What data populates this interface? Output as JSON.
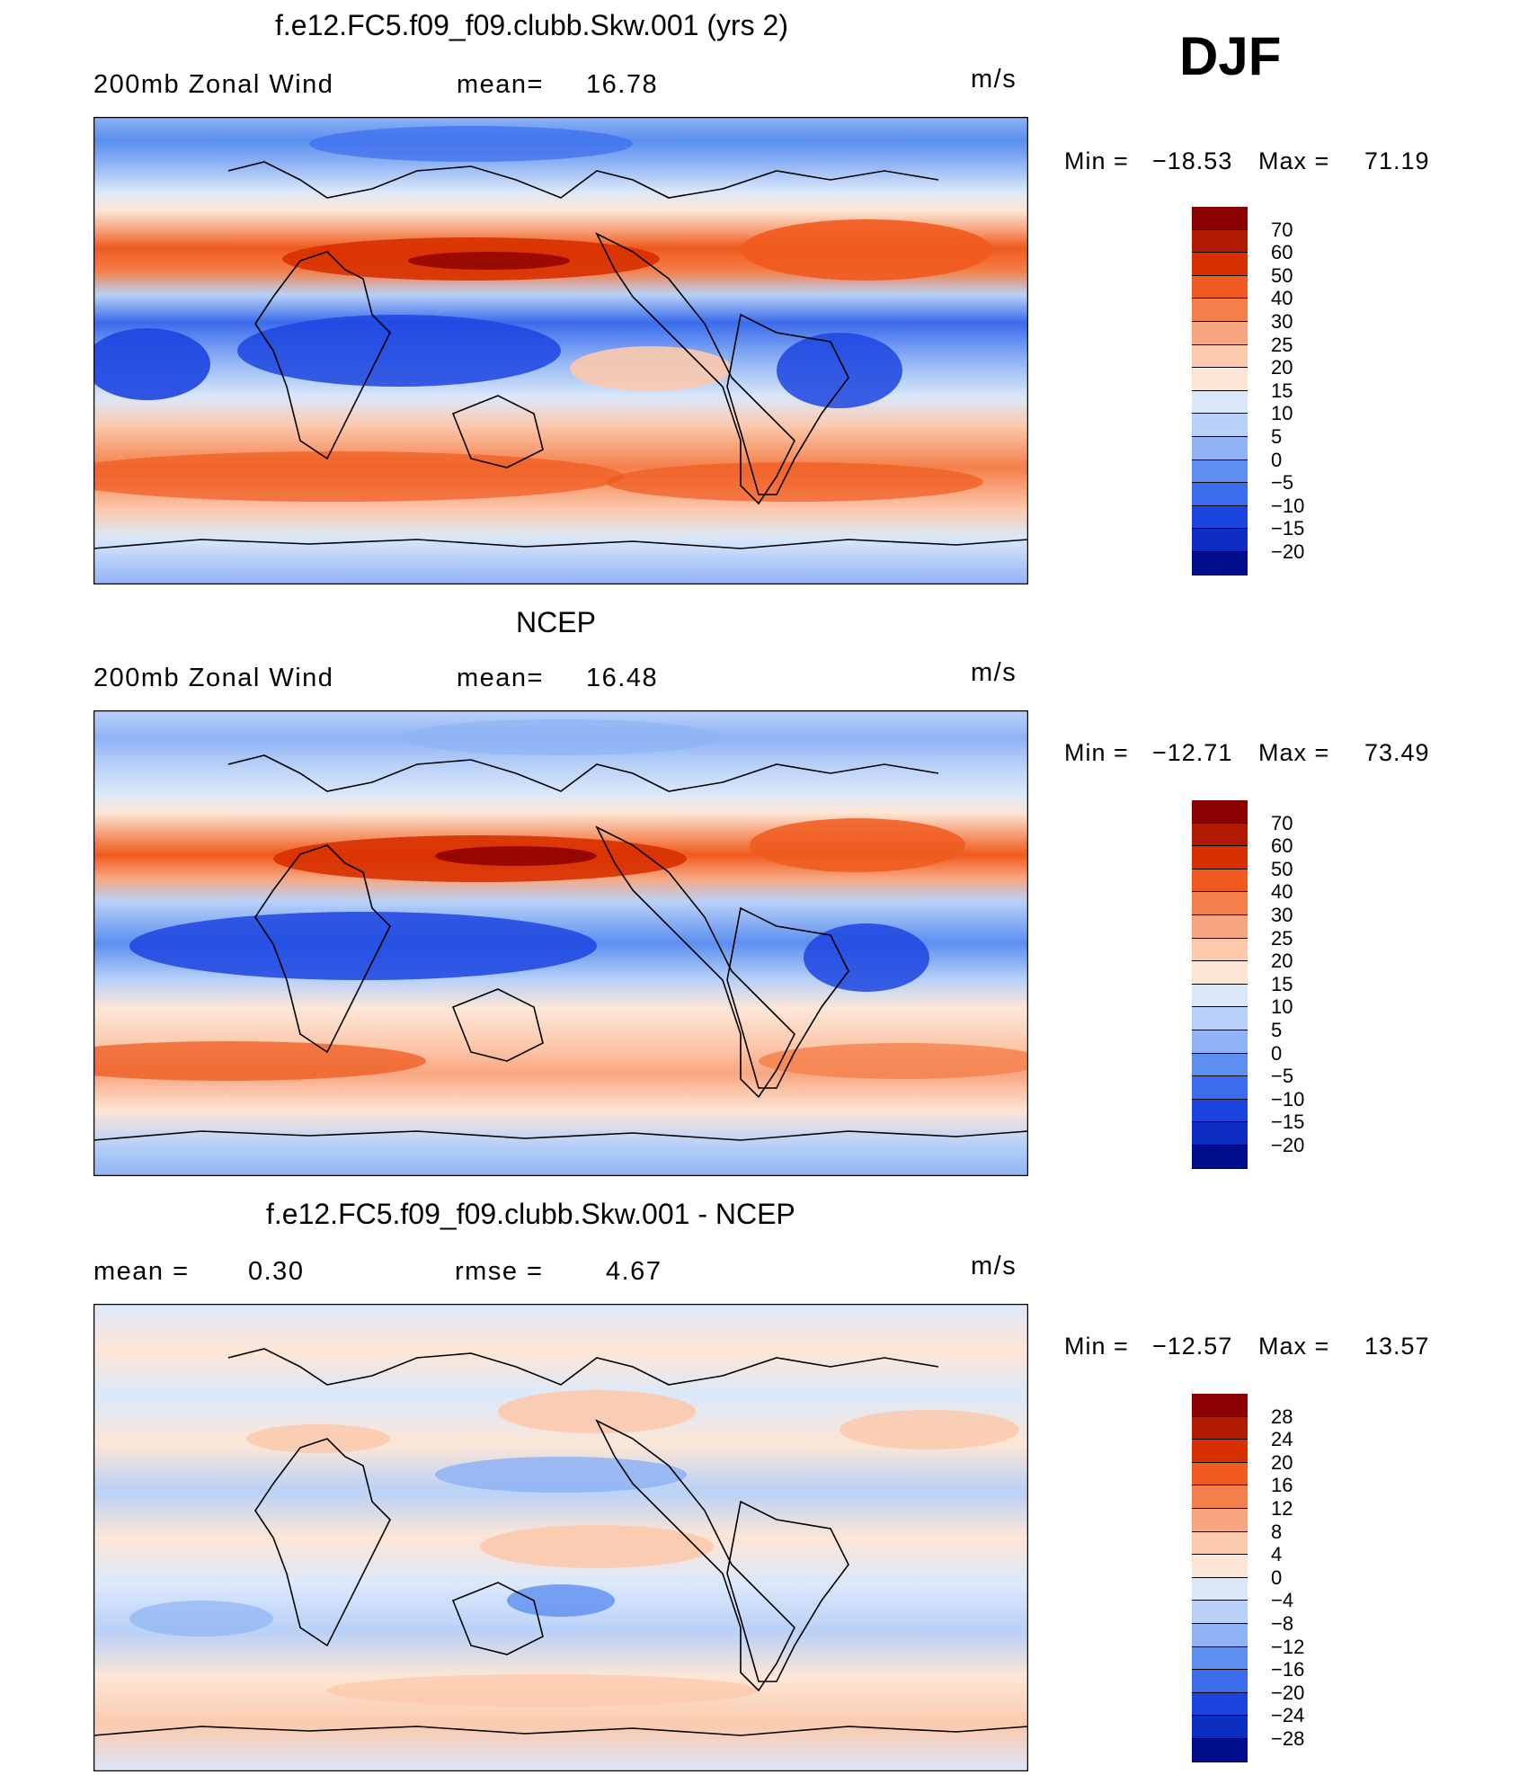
{
  "season": "DJF",
  "panels": [
    {
      "title": "f.e12.FC5.f09_f09.clubb.Skw.001 (yrs 2)",
      "left_label": "200mb  Zonal  Wind",
      "stat1_label": "mean=",
      "stat1_value": "16.78",
      "stat2_label": "",
      "stat2_value": "",
      "units": "m/s",
      "min_label": "Min  =",
      "min_value": "−18.53",
      "max_label": "Max  =",
      "max_value": "71.19"
    },
    {
      "title": "NCEP",
      "left_label": "200mb  Zonal  Wind",
      "stat1_label": "mean=",
      "stat1_value": "16.48",
      "stat2_label": "",
      "stat2_value": "",
      "units": "m/s",
      "min_label": "Min  =",
      "min_value": "−12.71",
      "max_label": "Max  =",
      "max_value": "73.49"
    },
    {
      "title": "f.e12.FC5.f09_f09.clubb.Skw.001 - NCEP",
      "left_label": "mean  =",
      "stat1_label": "",
      "stat1_value": "0.30",
      "stat2_label": "rmse  =",
      "stat2_value": "4.67",
      "units": "m/s",
      "min_label": "Min  =",
      "min_value": "−12.57",
      "max_label": "Max  =",
      "max_value": "13.57"
    }
  ],
  "colorbar_abs": {
    "labels": [
      "70",
      "60",
      "50",
      "40",
      "30",
      "25",
      "20",
      "15",
      "10",
      "5",
      "0",
      "−5",
      "−10",
      "−15",
      "−20"
    ],
    "colors": [
      "#8b0000",
      "#b01a00",
      "#d83000",
      "#ef5a1e",
      "#f47f4a",
      "#f8a680",
      "#fcc9ad",
      "#fde6d6",
      "#dbe8fa",
      "#b9d1f8",
      "#8fb3f5",
      "#5c8ff0",
      "#3a6cec",
      "#1c45e0",
      "#0d2cc0",
      "#000d8c"
    ]
  },
  "colorbar_diff": {
    "labels": [
      "28",
      "24",
      "20",
      "16",
      "12",
      "8",
      "4",
      "0",
      "−4",
      "−8",
      "−12",
      "−16",
      "−20",
      "−24",
      "−28"
    ],
    "colors": [
      "#8b0000",
      "#b01a00",
      "#d83000",
      "#ef5a1e",
      "#f47f4a",
      "#f8a680",
      "#fcc9ad",
      "#fde6d6",
      "#dbe8fa",
      "#b9d1f8",
      "#8fb3f5",
      "#5c8ff0",
      "#3a6cec",
      "#1c45e0",
      "#0d2cc0",
      "#000d8c"
    ]
  }
}
